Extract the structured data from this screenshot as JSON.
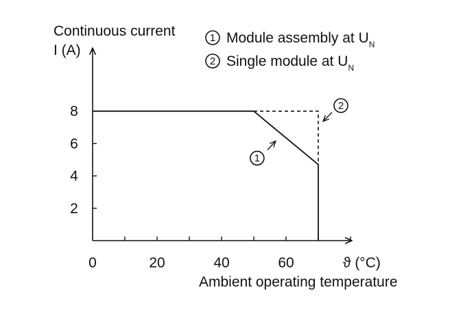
{
  "chart_data": {
    "type": "line",
    "ylabel_line1": "Continuous current",
    "ylabel_line2": "I (A)",
    "xlabel": "Ambient operating temperature",
    "xunit": "ϑ (°C)",
    "xlim": [
      0,
      80
    ],
    "ylim": [
      0,
      10
    ],
    "x_ticks": [
      0,
      10,
      20,
      30,
      40,
      50,
      60,
      70,
      80
    ],
    "x_tick_labels": [
      {
        "x": 0,
        "label": "0"
      },
      {
        "x": 20,
        "label": "20"
      },
      {
        "x": 40,
        "label": "40"
      },
      {
        "x": 60,
        "label": "60"
      }
    ],
    "y_ticks": [
      0,
      2,
      4,
      6,
      8
    ],
    "y_tick_labels": [
      {
        "y": 2,
        "label": "2"
      },
      {
        "y": 4,
        "label": "4"
      },
      {
        "y": 6,
        "label": "6"
      },
      {
        "y": 8,
        "label": "8"
      }
    ],
    "series": [
      {
        "id": 1,
        "marker": "1",
        "name": "Module assembly at U",
        "subscript": "N",
        "style": "solid",
        "points": [
          [
            0,
            8
          ],
          [
            50,
            8
          ],
          [
            70,
            4.7
          ],
          [
            70,
            0
          ]
        ],
        "callout_at": [
          57,
          6.2
        ]
      },
      {
        "id": 2,
        "marker": "2",
        "name": "Single module at U",
        "subscript": "N",
        "style": "dashed",
        "points": [
          [
            50,
            8
          ],
          [
            70,
            8
          ],
          [
            70,
            4.7
          ]
        ],
        "callout_at": [
          70,
          7.5
        ]
      }
    ],
    "grid": false,
    "legend_position": "top-right",
    "colors": {
      "line": "#111111",
      "background": "#ffffff"
    }
  }
}
